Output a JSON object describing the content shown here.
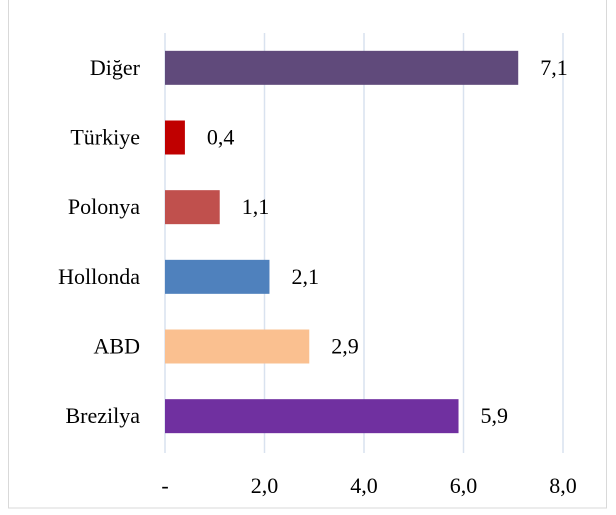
{
  "chart_data": {
    "type": "bar",
    "orientation": "horizontal",
    "categories": [
      "Diğer",
      "Türkiye",
      "Polonya",
      "Hollonda",
      "ABD",
      "Brezilya"
    ],
    "values": [
      7.1,
      0.4,
      1.1,
      2.1,
      2.9,
      5.9
    ],
    "value_labels": [
      "7,1",
      "0,4",
      "1,1",
      "2,1",
      "2,9",
      "5,9"
    ],
    "colors": [
      "#604a7b",
      "#c00000",
      "#c0504d",
      "#4f81bd",
      "#fac090",
      "#7030a0"
    ],
    "xlim": [
      0,
      8
    ],
    "xticks": [
      {
        "value": 0,
        "label": "-"
      },
      {
        "value": 2,
        "label": "2,0"
      },
      {
        "value": 4,
        "label": "4,0"
      },
      {
        "value": 6,
        "label": "6,0"
      },
      {
        "value": 8,
        "label": "8,0"
      }
    ],
    "grid": true
  }
}
